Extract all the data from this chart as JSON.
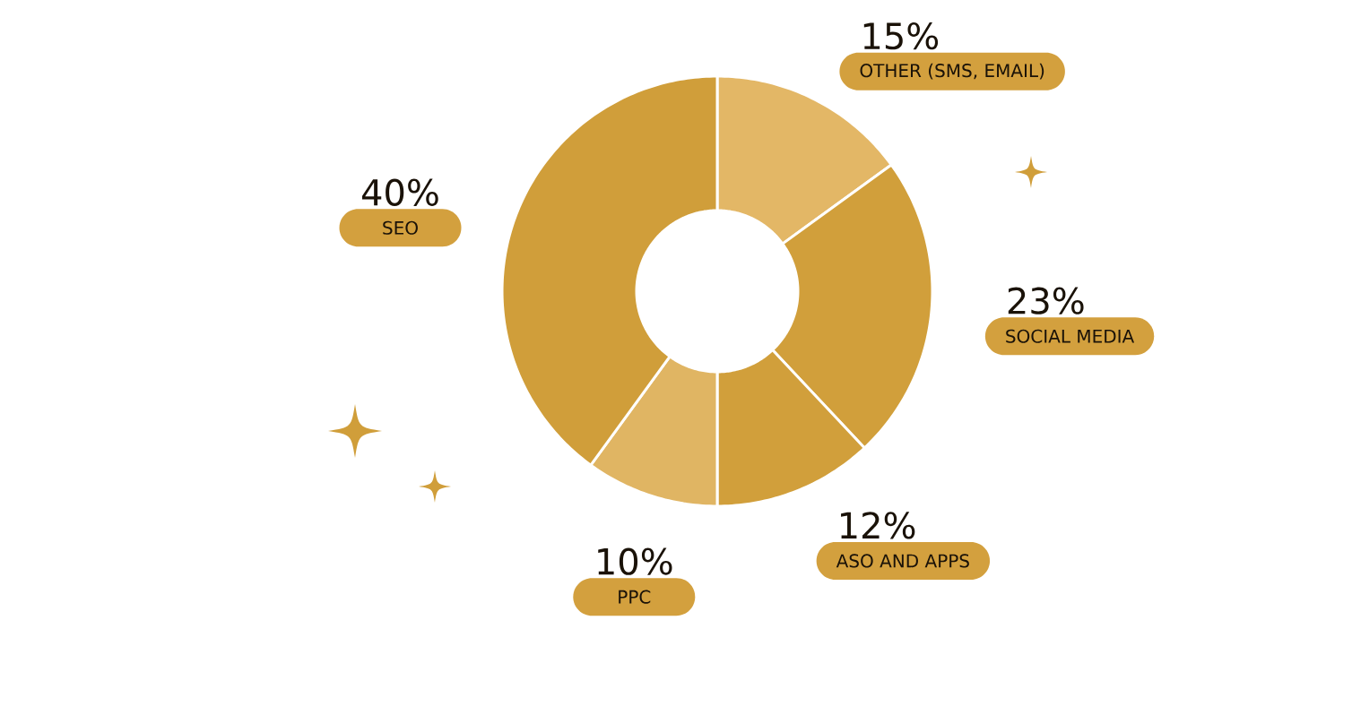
{
  "chart_data": {
    "type": "donut",
    "categories": [
      "OTHER (SMS, EMAIL)",
      "SOCIAL MEDIA",
      "ASO AND APPS",
      "PPC",
      "SEO"
    ],
    "values": [
      15,
      23,
      12,
      10,
      40
    ],
    "colors": [
      "#e3b766",
      "#d19f3b",
      "#d19f3b",
      "#e0b563",
      "#d09e3a"
    ],
    "value_labels": [
      "15%",
      "23%",
      "12%",
      "10%",
      "40%"
    ]
  }
}
